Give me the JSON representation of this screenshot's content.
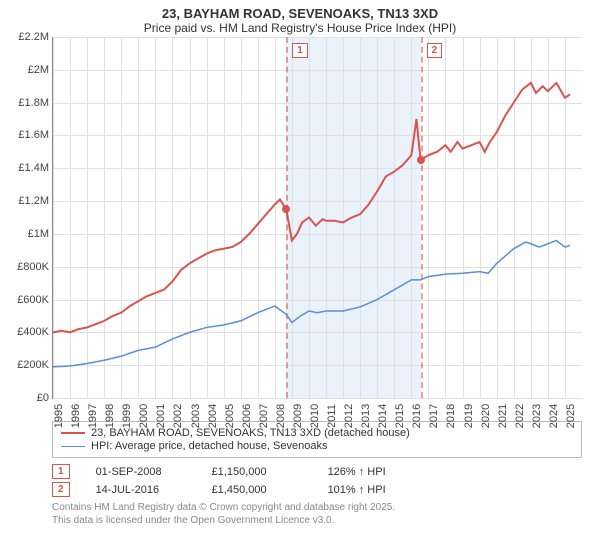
{
  "title": {
    "line1": "23, BAYHAM ROAD, SEVENOAKS, TN13 3XD",
    "line2": "Price paid vs. HM Land Registry's House Price Index (HPI)"
  },
  "chart": {
    "ylim": [
      0,
      2200000
    ],
    "xlim": [
      1995,
      2026
    ],
    "yticks": [
      {
        "v": 0,
        "label": "£0"
      },
      {
        "v": 200000,
        "label": "£200K"
      },
      {
        "v": 400000,
        "label": "£400K"
      },
      {
        "v": 600000,
        "label": "£600K"
      },
      {
        "v": 800000,
        "label": "£800K"
      },
      {
        "v": 1000000,
        "label": "£1M"
      },
      {
        "v": 1200000,
        "label": "£1.2M"
      },
      {
        "v": 1400000,
        "label": "£1.4M"
      },
      {
        "v": 1600000,
        "label": "£1.6M"
      },
      {
        "v": 1800000,
        "label": "£1.8M"
      },
      {
        "v": 2000000,
        "label": "£2M"
      },
      {
        "v": 2200000,
        "label": "£2.2M"
      }
    ],
    "xticks": [
      1995,
      1996,
      1997,
      1998,
      1999,
      2000,
      2001,
      2002,
      2003,
      2004,
      2005,
      2006,
      2007,
      2008,
      2009,
      2010,
      2011,
      2012,
      2013,
      2014,
      2015,
      2016,
      2017,
      2018,
      2019,
      2020,
      2021,
      2022,
      2023,
      2024,
      2025
    ],
    "shade": {
      "from": 2008.67,
      "to": 2016.54,
      "color": "#eaf2fb"
    },
    "grid_color": "#e0e0e0",
    "axis_color": "#888888",
    "background": "#ffffff",
    "series": {
      "price_paid": {
        "color": "#d9534f",
        "width": 2,
        "data": [
          [
            1995,
            400000
          ],
          [
            1995.5,
            410000
          ],
          [
            1996,
            400000
          ],
          [
            1996.5,
            420000
          ],
          [
            1997,
            430000
          ],
          [
            1997.5,
            450000
          ],
          [
            1998,
            470000
          ],
          [
            1998.5,
            500000
          ],
          [
            1999,
            520000
          ],
          [
            1999.5,
            560000
          ],
          [
            2000,
            590000
          ],
          [
            2000.5,
            620000
          ],
          [
            2001,
            640000
          ],
          [
            2001.5,
            660000
          ],
          [
            2002,
            710000
          ],
          [
            2002.5,
            780000
          ],
          [
            2003,
            820000
          ],
          [
            2003.5,
            850000
          ],
          [
            2004,
            880000
          ],
          [
            2004.5,
            900000
          ],
          [
            2005,
            910000
          ],
          [
            2005.5,
            920000
          ],
          [
            2006,
            950000
          ],
          [
            2006.5,
            1000000
          ],
          [
            2007,
            1060000
          ],
          [
            2007.5,
            1120000
          ],
          [
            2008,
            1180000
          ],
          [
            2008.3,
            1210000
          ],
          [
            2008.67,
            1150000
          ],
          [
            2009,
            960000
          ],
          [
            2009.3,
            1000000
          ],
          [
            2009.6,
            1070000
          ],
          [
            2010,
            1100000
          ],
          [
            2010.4,
            1050000
          ],
          [
            2010.8,
            1090000
          ],
          [
            2011,
            1080000
          ],
          [
            2011.5,
            1080000
          ],
          [
            2012,
            1070000
          ],
          [
            2012.5,
            1100000
          ],
          [
            2013,
            1120000
          ],
          [
            2013.5,
            1180000
          ],
          [
            2014,
            1260000
          ],
          [
            2014.5,
            1350000
          ],
          [
            2015,
            1380000
          ],
          [
            2015.5,
            1420000
          ],
          [
            2016,
            1480000
          ],
          [
            2016.3,
            1700000
          ],
          [
            2016.54,
            1450000
          ],
          [
            2017,
            1480000
          ],
          [
            2017.5,
            1500000
          ],
          [
            2018,
            1540000
          ],
          [
            2018.3,
            1500000
          ],
          [
            2018.7,
            1560000
          ],
          [
            2019,
            1520000
          ],
          [
            2019.5,
            1540000
          ],
          [
            2020,
            1560000
          ],
          [
            2020.3,
            1500000
          ],
          [
            2020.6,
            1560000
          ],
          [
            2021,
            1620000
          ],
          [
            2021.5,
            1720000
          ],
          [
            2022,
            1800000
          ],
          [
            2022.5,
            1880000
          ],
          [
            2023,
            1920000
          ],
          [
            2023.3,
            1860000
          ],
          [
            2023.7,
            1900000
          ],
          [
            2024,
            1870000
          ],
          [
            2024.5,
            1920000
          ],
          [
            2025,
            1830000
          ],
          [
            2025.3,
            1850000
          ]
        ]
      },
      "hpi": {
        "color": "#5b8fd6",
        "width": 1.5,
        "data": [
          [
            1995,
            190000
          ],
          [
            1996,
            195000
          ],
          [
            1997,
            210000
          ],
          [
            1998,
            230000
          ],
          [
            1999,
            255000
          ],
          [
            2000,
            290000
          ],
          [
            2001,
            310000
          ],
          [
            2002,
            360000
          ],
          [
            2003,
            400000
          ],
          [
            2004,
            430000
          ],
          [
            2005,
            445000
          ],
          [
            2006,
            470000
          ],
          [
            2007,
            520000
          ],
          [
            2008,
            560000
          ],
          [
            2008.67,
            510000
          ],
          [
            2009,
            460000
          ],
          [
            2009.5,
            500000
          ],
          [
            2010,
            530000
          ],
          [
            2010.5,
            520000
          ],
          [
            2011,
            530000
          ],
          [
            2012,
            530000
          ],
          [
            2013,
            555000
          ],
          [
            2014,
            600000
          ],
          [
            2015,
            660000
          ],
          [
            2016,
            720000
          ],
          [
            2016.54,
            720000
          ],
          [
            2017,
            740000
          ],
          [
            2018,
            755000
          ],
          [
            2019,
            760000
          ],
          [
            2020,
            770000
          ],
          [
            2020.5,
            760000
          ],
          [
            2021,
            820000
          ],
          [
            2022,
            910000
          ],
          [
            2022.7,
            950000
          ],
          [
            2023,
            940000
          ],
          [
            2023.5,
            920000
          ],
          [
            2024,
            940000
          ],
          [
            2024.5,
            960000
          ],
          [
            2025,
            920000
          ],
          [
            2025.3,
            930000
          ]
        ]
      }
    },
    "markers": [
      {
        "badge": "1",
        "x": 2008.67,
        "y": 1150000
      },
      {
        "badge": "2",
        "x": 2016.54,
        "y": 1450000
      }
    ]
  },
  "legend": {
    "items": [
      {
        "color": "#d9534f",
        "width": 2,
        "label": "23, BAYHAM ROAD, SEVENOAKS, TN13 3XD (detached house)"
      },
      {
        "color": "#5b8fd6",
        "width": 1.5,
        "label": "HPI: Average price, detached house, Sevenoaks"
      }
    ]
  },
  "sales": [
    {
      "badge": "1",
      "date": "01-SEP-2008",
      "price": "£1,150,000",
      "delta": "126% ↑ HPI"
    },
    {
      "badge": "2",
      "date": "14-JUL-2016",
      "price": "£1,450,000",
      "delta": "101% ↑ HPI"
    }
  ],
  "footer": {
    "line1": "Contains HM Land Registry data © Crown copyright and database right 2025.",
    "line2": "This data is licensed under the Open Government Licence v3.0."
  }
}
